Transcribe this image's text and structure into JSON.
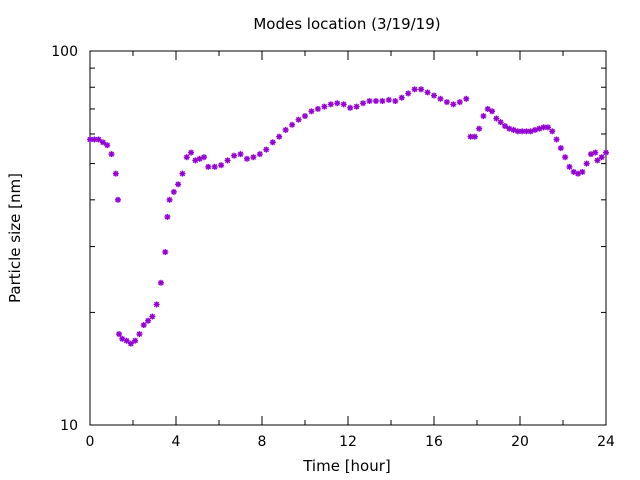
{
  "chart_data": {
    "type": "scatter",
    "title": "Modes location (3/19/19)",
    "xlabel": "Time [hour]",
    "ylabel": "Particle size [nm]",
    "xlim": [
      0,
      24
    ],
    "ylim": [
      10,
      100
    ],
    "yscale": "log",
    "xticks": [
      "0",
      "4",
      "8",
      "12",
      "16",
      "20",
      "24"
    ],
    "xtick_values": [
      0,
      4,
      8,
      12,
      16,
      20,
      24
    ],
    "yticks": [
      "10",
      "100"
    ],
    "ytick_values": [
      10,
      100
    ],
    "grid": false,
    "marker_color": "#9400d3",
    "series": [
      {
        "points": [
          [
            0.0,
            58
          ],
          [
            0.2,
            58
          ],
          [
            0.4,
            58
          ],
          [
            0.6,
            57
          ],
          [
            0.8,
            56
          ],
          [
            1.0,
            53
          ],
          [
            1.2,
            47
          ],
          [
            1.3,
            40
          ],
          [
            1.35,
            17.5
          ],
          [
            1.5,
            17
          ],
          [
            1.7,
            16.8
          ],
          [
            1.9,
            16.5
          ],
          [
            2.1,
            16.8
          ],
          [
            2.3,
            17.5
          ],
          [
            2.5,
            18.5
          ],
          [
            2.7,
            19
          ],
          [
            2.9,
            19.5
          ],
          [
            3.1,
            21
          ],
          [
            3.3,
            24
          ],
          [
            3.5,
            29
          ],
          [
            3.6,
            36
          ],
          [
            3.7,
            40
          ],
          [
            3.9,
            42
          ],
          [
            4.1,
            44
          ],
          [
            4.3,
            47
          ],
          [
            4.5,
            52
          ],
          [
            4.7,
            53.5
          ],
          [
            4.9,
            51
          ],
          [
            5.1,
            51.5
          ],
          [
            5.3,
            52
          ],
          [
            5.5,
            49
          ],
          [
            5.8,
            49
          ],
          [
            6.1,
            49.5
          ],
          [
            6.4,
            51
          ],
          [
            6.7,
            52.5
          ],
          [
            7.0,
            53
          ],
          [
            7.3,
            51.5
          ],
          [
            7.6,
            52
          ],
          [
            7.9,
            53
          ],
          [
            8.2,
            54.5
          ],
          [
            8.5,
            57
          ],
          [
            8.8,
            59
          ],
          [
            9.1,
            61.5
          ],
          [
            9.4,
            63.5
          ],
          [
            9.7,
            65.5
          ],
          [
            10.0,
            67
          ],
          [
            10.3,
            69
          ],
          [
            10.6,
            70
          ],
          [
            10.9,
            71
          ],
          [
            11.2,
            72
          ],
          [
            11.5,
            72.5
          ],
          [
            11.8,
            72
          ],
          [
            12.1,
            70.5
          ],
          [
            12.4,
            71
          ],
          [
            12.7,
            72.5
          ],
          [
            13.0,
            73.5
          ],
          [
            13.3,
            73.5
          ],
          [
            13.6,
            73.5
          ],
          [
            13.9,
            74
          ],
          [
            14.2,
            73.5
          ],
          [
            14.5,
            75
          ],
          [
            14.8,
            77
          ],
          [
            15.1,
            79
          ],
          [
            15.4,
            79
          ],
          [
            15.7,
            77.5
          ],
          [
            16.0,
            76
          ],
          [
            16.3,
            74.5
          ],
          [
            16.6,
            73
          ],
          [
            16.9,
            72
          ],
          [
            17.2,
            73
          ],
          [
            17.5,
            74.5
          ],
          [
            17.7,
            59
          ],
          [
            17.9,
            59
          ],
          [
            18.1,
            62
          ],
          [
            18.3,
            67
          ],
          [
            18.5,
            70
          ],
          [
            18.7,
            69
          ],
          [
            18.9,
            66
          ],
          [
            19.1,
            64.5
          ],
          [
            19.3,
            63
          ],
          [
            19.5,
            62
          ],
          [
            19.7,
            61.5
          ],
          [
            19.9,
            61
          ],
          [
            20.1,
            61
          ],
          [
            20.3,
            61
          ],
          [
            20.5,
            61
          ],
          [
            20.7,
            61.5
          ],
          [
            20.9,
            62
          ],
          [
            21.1,
            62.5
          ],
          [
            21.3,
            62.5
          ],
          [
            21.5,
            61
          ],
          [
            21.7,
            58
          ],
          [
            21.9,
            55
          ],
          [
            22.1,
            52
          ],
          [
            22.3,
            49
          ],
          [
            22.5,
            47.5
          ],
          [
            22.7,
            47
          ],
          [
            22.9,
            47.5
          ],
          [
            23.1,
            50
          ],
          [
            23.3,
            53
          ],
          [
            23.5,
            53.5
          ],
          [
            23.6,
            51
          ],
          [
            23.8,
            52
          ],
          [
            24.0,
            53.5
          ]
        ]
      }
    ]
  }
}
